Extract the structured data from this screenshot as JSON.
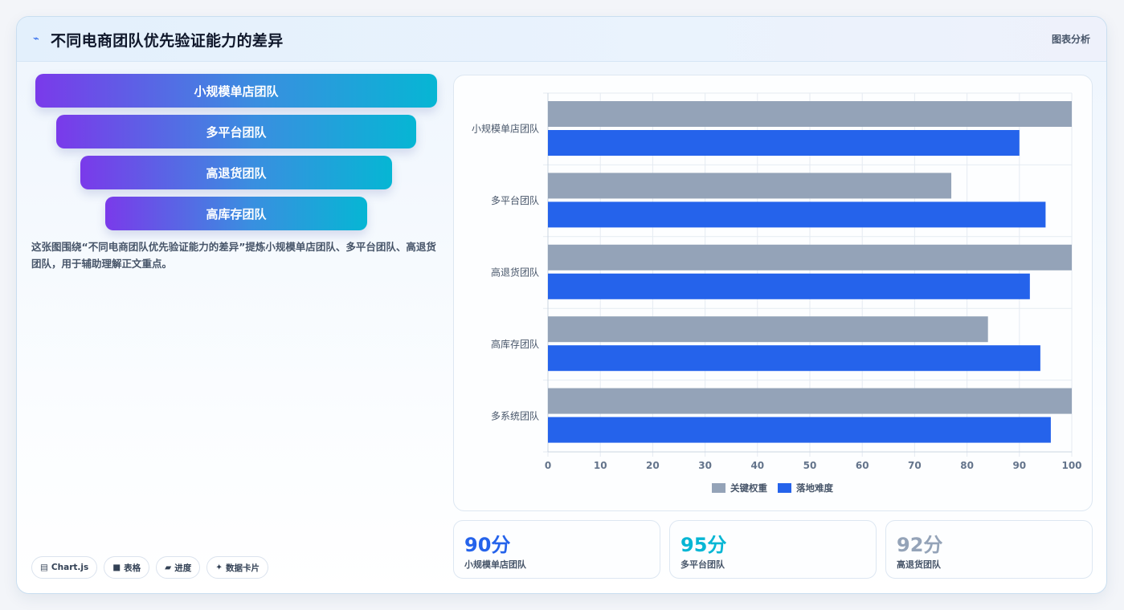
{
  "header": {
    "icon": "sparkle-icon",
    "title": "不同电商团队优先验证能力的差异",
    "right_label": "图表分析"
  },
  "funnel": {
    "items": [
      {
        "label": "小规模单店团队"
      },
      {
        "label": "多平台团队"
      },
      {
        "label": "高退货团队"
      },
      {
        "label": "高库存团队"
      }
    ]
  },
  "description": "这张图围绕“不同电商团队优先验证能力的差异”提炼小规模单店团队、多平台团队、高退货团队，用于辅助理解正文重点。",
  "tags": [
    {
      "icon": "chart-icon",
      "glyph": "▤",
      "label": "Chart.js"
    },
    {
      "icon": "table-icon",
      "glyph": "■",
      "label": "表格"
    },
    {
      "icon": "progress-icon",
      "glyph": "▰",
      "label": "进度"
    },
    {
      "icon": "card-icon",
      "glyph": "✦",
      "label": "数据卡片"
    }
  ],
  "chart_data": {
    "type": "bar",
    "orientation": "horizontal",
    "categories": [
      "小规模单店团队",
      "多平台团队",
      "高退货团队",
      "高库存团队",
      "多系统团队"
    ],
    "series": [
      {
        "name": "关键权重",
        "color": "#94a3b8",
        "values": [
          100,
          77,
          100,
          84,
          100
        ]
      },
      {
        "name": "落地难度",
        "color": "#2563eb",
        "values": [
          90,
          95,
          92,
          94,
          96
        ]
      }
    ],
    "xlim": [
      0,
      100
    ],
    "xticks": [
      0,
      10,
      20,
      30,
      40,
      50,
      60,
      70,
      80,
      90,
      100
    ],
    "grid": true,
    "legend": "bottom"
  },
  "stats": [
    {
      "value": "90分",
      "label": "小规模单店团队",
      "color": "#2563eb"
    },
    {
      "value": "95分",
      "label": "多平台团队",
      "color": "#06b6d4"
    },
    {
      "value": "92分",
      "label": "高退货团队",
      "color": "#94a3b8"
    }
  ]
}
